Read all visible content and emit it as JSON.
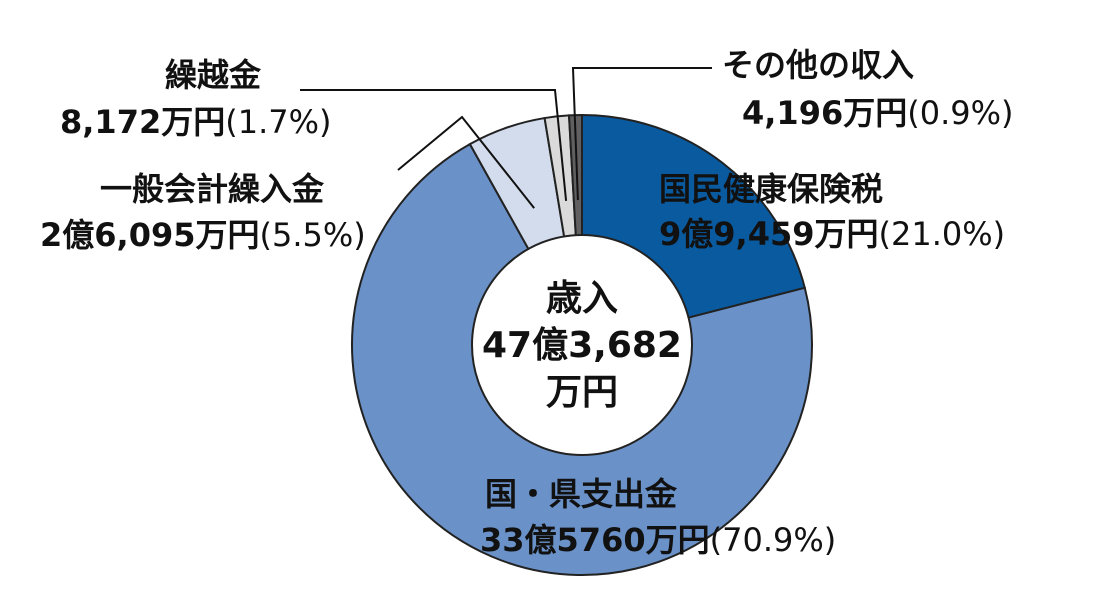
{
  "chart_data": {
    "type": "pie",
    "donut": true,
    "center_label": {
      "line1": "歳入",
      "line2": "47億3,682",
      "line3": "万円"
    },
    "slices": [
      {
        "name": "国民健康保険税",
        "amount": "9億9,459万円",
        "percent": 21.0,
        "percent_label": "(21.0%)",
        "color": "#0a5aa0"
      },
      {
        "name": "国・県支出金",
        "amount": "33億5760万円",
        "percent": 70.9,
        "percent_label": "(70.9%)",
        "color": "#6a92c8"
      },
      {
        "name": "一般会計繰入金",
        "amount": "2億6,095万円",
        "percent": 5.5,
        "percent_label": "(5.5%)",
        "color": "#d2dcec"
      },
      {
        "name": "繰越金",
        "amount": "8,172万円",
        "percent": 1.7,
        "percent_label": "(1.7%)",
        "color": "#dadada"
      },
      {
        "name": "その他の収入",
        "amount": "4,196万円",
        "percent": 0.9,
        "percent_label": "(0.9%)",
        "color": "#606060"
      }
    ],
    "start_angle_deg": 0,
    "direction": "clockwise"
  }
}
